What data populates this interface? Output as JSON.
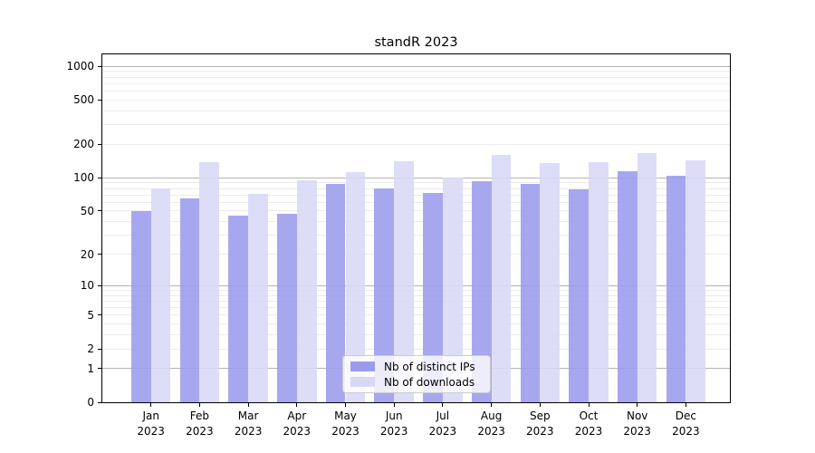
{
  "chart_data": {
    "type": "bar",
    "title": "standR 2023",
    "categories": [
      "Jan",
      "Feb",
      "Mar",
      "Apr",
      "May",
      "Jun",
      "Jul",
      "Aug",
      "Sep",
      "Oct",
      "Nov",
      "Dec"
    ],
    "x_year_label": "2023",
    "series": [
      {
        "name": "Nb of distinct IPs",
        "color": "#9b9bee",
        "values": [
          50,
          65,
          45,
          47,
          88,
          80,
          73,
          93,
          88,
          78,
          115,
          104
        ]
      },
      {
        "name": "Nb of downloads",
        "color": "#d8d8f6",
        "values": [
          80,
          138,
          71,
          95,
          113,
          140,
          100,
          160,
          136,
          139,
          167,
          145
        ]
      }
    ],
    "y_ticks": [
      1000,
      500,
      200,
      100,
      50,
      20,
      10,
      5,
      2,
      1,
      0
    ],
    "y_scale": "log1p",
    "ylim": [
      0,
      1280
    ],
    "xlabel": "",
    "ylabel": "",
    "grid": true,
    "legend_position": "lower center",
    "colors": {
      "axis": "#000000",
      "grid_major": "#b3b3b3",
      "grid_minor": "#ebebeb",
      "text": "#000000"
    }
  }
}
